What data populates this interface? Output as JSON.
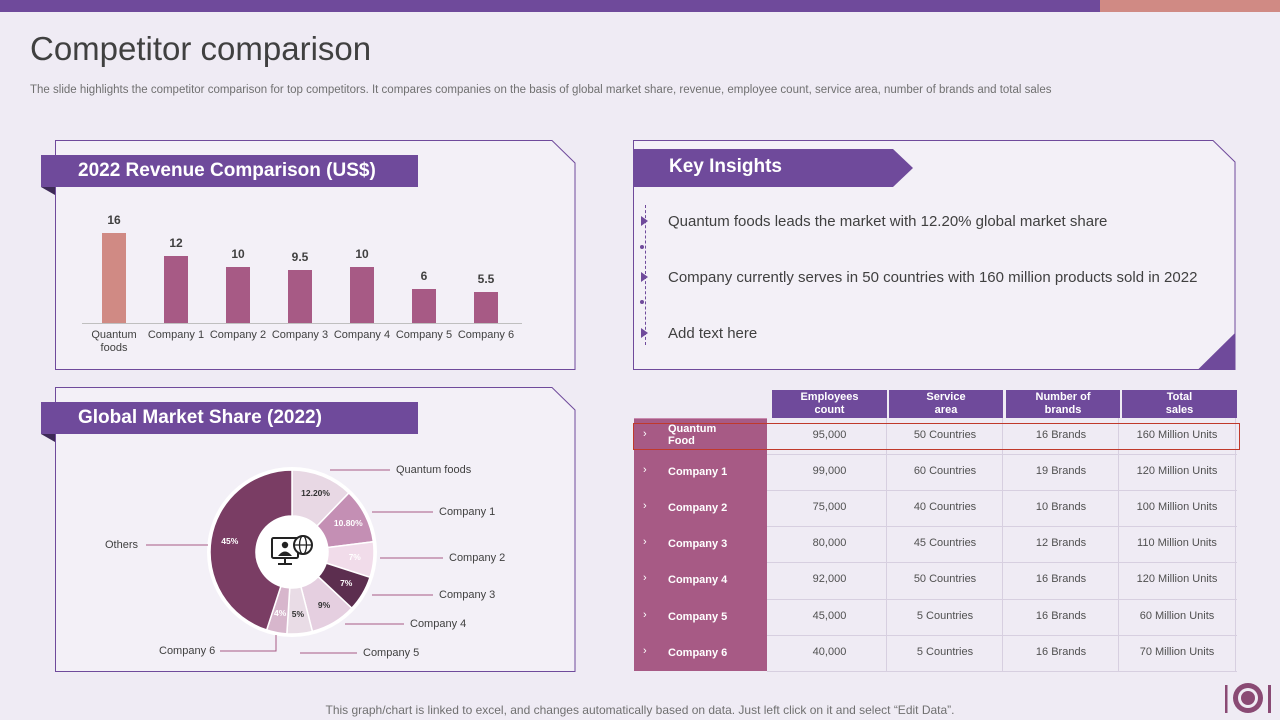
{
  "title": "Competitor comparison",
  "subtitle": "The slide highlights the competitor comparison for top competitors. It compares companies on the basis of global market share, revenue, employee count, service area, number of brands and total sales",
  "colors": {
    "accent": "#6f4a9b",
    "highlight": "#d08a84",
    "bar": "#a75a85",
    "dark": "#6b3856",
    "alert": "#c0392b"
  },
  "revenue_panel": {
    "title": "2022 Revenue Comparison (US$)"
  },
  "share_panel": {
    "title": "Global Market Share (2022)"
  },
  "insights_panel": {
    "title": "Key Insights",
    "items": [
      "Quantum foods leads the market with 12.20% global market share",
      "Company currently serves in 50 countries with 160 million products sold in 2022",
      "Add text here"
    ]
  },
  "table": {
    "headers": [
      "Employees count",
      "Service area",
      "Number of brands",
      "Total sales"
    ],
    "rows": [
      {
        "name": "Quantum Food",
        "cells": [
          "95,000",
          "50 Countries",
          "16 Brands",
          "160 Million Units"
        ]
      },
      {
        "name": "Company 1",
        "cells": [
          "99,000",
          "60 Countries",
          "19 Brands",
          "120 Million Units"
        ]
      },
      {
        "name": "Company 2",
        "cells": [
          "75,000",
          "40 Countries",
          "10 Brands",
          "100 Million Units"
        ]
      },
      {
        "name": "Company 3",
        "cells": [
          "80,000",
          "45 Countries",
          "12 Brands",
          "110 Million Units"
        ]
      },
      {
        "name": "Company 4",
        "cells": [
          "92,000",
          "50 Countries",
          "16 Brands",
          "120 Million Units"
        ]
      },
      {
        "name": "Company 5",
        "cells": [
          "45,000",
          "5 Countries",
          "16 Brands",
          "60 Million Units"
        ]
      },
      {
        "name": "Company 6",
        "cells": [
          "40,000",
          "5 Countries",
          "16 Brands",
          "70 Million Units"
        ]
      }
    ]
  },
  "footer": "This graph/chart is linked to excel,  and changes automatically based on data. Just left click on it and select “Edit Data”.",
  "chart_data": [
    {
      "type": "bar",
      "title": "2022 Revenue Comparison (US$)",
      "categories": [
        "Quantum foods",
        "Company 1",
        "Company 2",
        "Company 3",
        "Company 4",
        "Company 5",
        "Company 6"
      ],
      "values": [
        16,
        12,
        10,
        9.5,
        10,
        6,
        5.5
      ],
      "value_labels": [
        "16",
        "12",
        "10",
        "9.5",
        "10",
        "6",
        "5.5"
      ],
      "ylim": [
        0,
        16
      ]
    },
    {
      "type": "pie",
      "title": "Global Market Share (2022)",
      "slices": [
        {
          "label": "Quantum foods",
          "value": 12.2,
          "pct_label": "12.20%"
        },
        {
          "label": "Company 1",
          "value": 10.8,
          "pct_label": "10.80%"
        },
        {
          "label": "Company 2",
          "value": 7,
          "pct_label": "7%"
        },
        {
          "label": "Company 3",
          "value": 7,
          "pct_label": "7%"
        },
        {
          "label": "Company 4",
          "value": 9,
          "pct_label": "9%"
        },
        {
          "label": "Company 5",
          "value": 5,
          "pct_label": "5%"
        },
        {
          "label": "Company 6",
          "value": 4,
          "pct_label": "4%"
        },
        {
          "label": "Others",
          "value": 45,
          "pct_label": "45%"
        }
      ]
    }
  ]
}
